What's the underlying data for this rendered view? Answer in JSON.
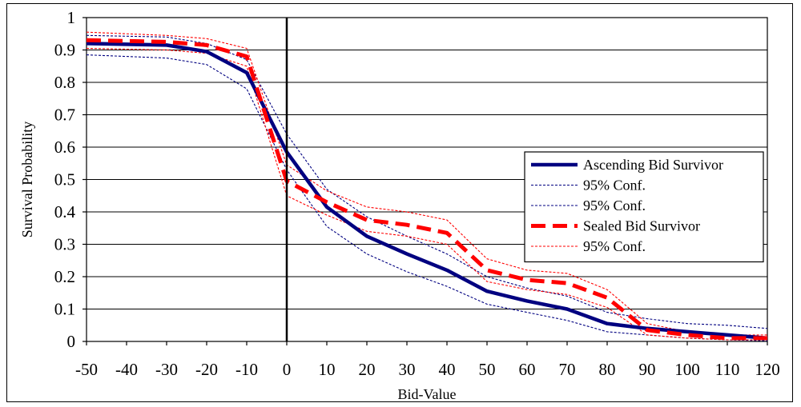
{
  "chart_data": {
    "type": "line",
    "title": "",
    "xlabel": "Bid-Value",
    "ylabel": "Survival Probability",
    "xlim": [
      -50,
      120
    ],
    "ylim": [
      0,
      1
    ],
    "x_ticks": [
      -50,
      -40,
      -30,
      -20,
      -10,
      0,
      10,
      20,
      30,
      40,
      50,
      60,
      70,
      80,
      90,
      100,
      110,
      120
    ],
    "y_ticks": [
      0,
      0.1,
      0.2,
      0.3,
      0.4,
      0.5,
      0.6,
      0.7,
      0.8,
      0.9,
      1
    ],
    "grid": "horizontal",
    "legend_position": "right",
    "x": [
      -50,
      -30,
      -20,
      -10,
      0,
      10,
      20,
      30,
      40,
      50,
      60,
      70,
      80,
      90,
      100,
      110,
      120
    ],
    "series": [
      {
        "name": "Ascending Bid Survivor",
        "legend": true,
        "color": "#000080",
        "style": "solid-thick",
        "values": [
          0.92,
          0.915,
          0.895,
          0.83,
          0.585,
          0.415,
          0.325,
          0.27,
          0.22,
          0.155,
          0.125,
          0.1,
          0.055,
          0.04,
          0.03,
          0.02,
          0.01
        ]
      },
      {
        "name": "95% Conf.",
        "legend": true,
        "color": "#000080",
        "style": "dotted-thin",
        "values": [
          0.945,
          0.94,
          0.92,
          0.87,
          0.64,
          0.47,
          0.385,
          0.325,
          0.27,
          0.2,
          0.165,
          0.14,
          0.09,
          0.07,
          0.055,
          0.05,
          0.04
        ]
      },
      {
        "name": "95% Conf.",
        "legend": true,
        "color": "#000080",
        "style": "dotted-thin",
        "values": [
          0.885,
          0.875,
          0.855,
          0.78,
          0.53,
          0.355,
          0.27,
          0.215,
          0.17,
          0.115,
          0.09,
          0.065,
          0.03,
          0.02,
          0.01,
          0.005,
          0.002
        ]
      },
      {
        "name": "Sealed Bid Survivor",
        "legend": true,
        "color": "#ff0000",
        "style": "dashed-thick",
        "values": [
          0.93,
          0.925,
          0.915,
          0.88,
          0.495,
          0.43,
          0.375,
          0.36,
          0.335,
          0.22,
          0.19,
          0.18,
          0.135,
          0.035,
          0.02,
          0.01,
          0.01
        ]
      },
      {
        "name": "95% Conf.",
        "legend": true,
        "color": "#ff0000",
        "style": "dotted-thin",
        "values": [
          0.955,
          0.945,
          0.935,
          0.905,
          0.545,
          0.465,
          0.415,
          0.4,
          0.375,
          0.255,
          0.22,
          0.21,
          0.16,
          0.055,
          0.03,
          0.02,
          0.02
        ]
      },
      {
        "name": "95% Conf.",
        "legend": false,
        "color": "#ff0000",
        "style": "dotted-thin",
        "values": [
          0.905,
          0.9,
          0.89,
          0.85,
          0.45,
          0.39,
          0.34,
          0.325,
          0.3,
          0.185,
          0.16,
          0.145,
          0.105,
          0.02,
          0.01,
          0.005,
          0.005
        ]
      }
    ]
  }
}
